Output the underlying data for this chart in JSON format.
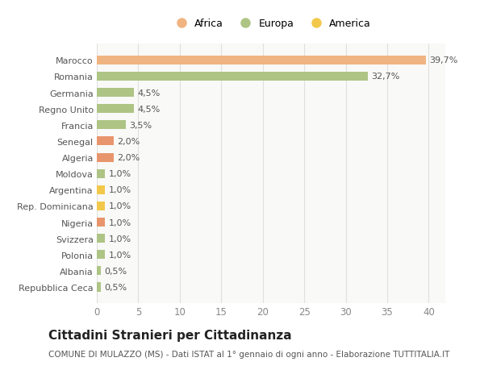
{
  "categories": [
    "Repubblica Ceca",
    "Albania",
    "Polonia",
    "Svizzera",
    "Nigeria",
    "Rep. Dominicana",
    "Argentina",
    "Moldova",
    "Algeria",
    "Senegal",
    "Francia",
    "Regno Unito",
    "Germania",
    "Romania",
    "Marocco"
  ],
  "values": [
    0.5,
    0.5,
    1.0,
    1.0,
    1.0,
    1.0,
    1.0,
    1.0,
    2.0,
    2.0,
    3.5,
    4.5,
    4.5,
    32.7,
    39.7
  ],
  "labels": [
    "0,5%",
    "0,5%",
    "1,0%",
    "1,0%",
    "1,0%",
    "1,0%",
    "1,0%",
    "1,0%",
    "2,0%",
    "2,0%",
    "3,5%",
    "4,5%",
    "4,5%",
    "32,7%",
    "39,7%"
  ],
  "colors": [
    "#adc485",
    "#adc485",
    "#adc485",
    "#adc485",
    "#e8956d",
    "#f2c84b",
    "#f2c84b",
    "#adc485",
    "#e8956d",
    "#e8956d",
    "#adc485",
    "#adc485",
    "#adc485",
    "#adc485",
    "#f0b482"
  ],
  "legend_labels": [
    "Africa",
    "Europa",
    "America"
  ],
  "legend_colors": [
    "#f0b482",
    "#adc485",
    "#f2c84b"
  ],
  "title": "Cittadini Stranieri per Cittadinanza",
  "subtitle": "COMUNE DI MULAZZO (MS) - Dati ISTAT al 1° gennaio di ogni anno - Elaborazione TUTTITALIA.IT",
  "xlim": [
    0,
    42
  ],
  "xticks": [
    0,
    5,
    10,
    15,
    20,
    25,
    30,
    35,
    40
  ],
  "bg_color": "#ffffff",
  "plot_bg_color": "#f9f9f7",
  "grid_color": "#e0e0e0",
  "bar_height": 0.55,
  "label_fontsize": 8.0,
  "title_fontsize": 11,
  "subtitle_fontsize": 7.5,
  "ytick_fontsize": 8.0,
  "xtick_fontsize": 8.5
}
